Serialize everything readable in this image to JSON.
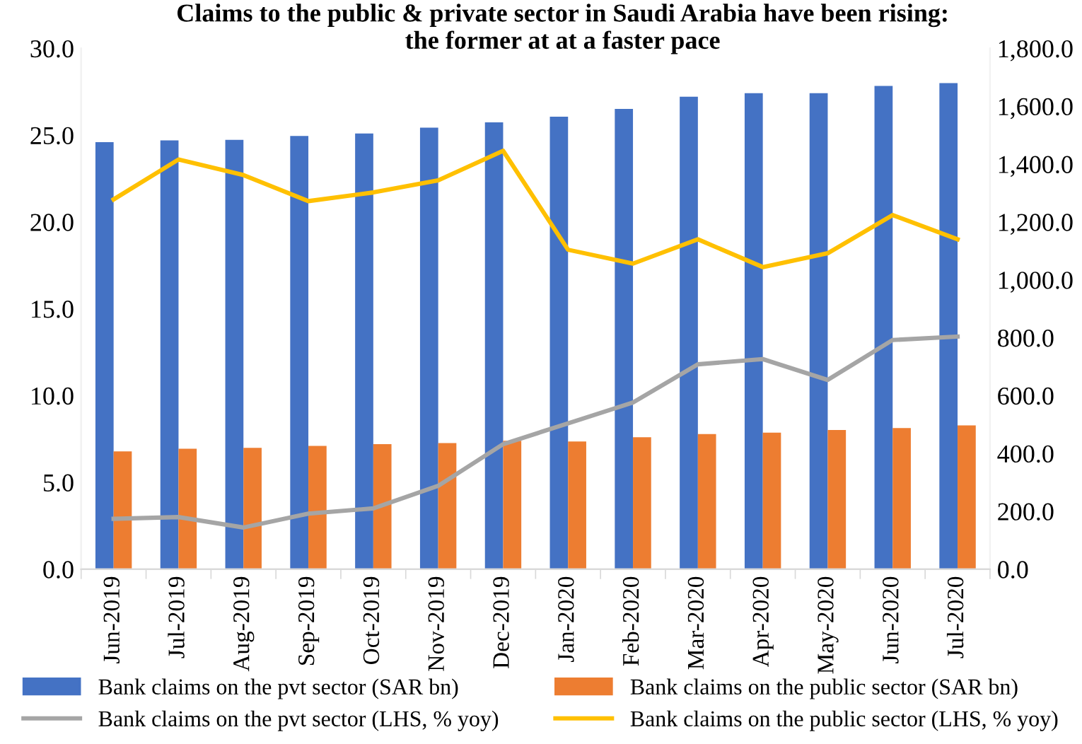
{
  "chart_data": {
    "type": "bar",
    "title": "Claims to the public & private sector in Saudi Arabia have been rising:\nthe former at at a faster pace",
    "categories": [
      "Jun-2019",
      "Jul-2019",
      "Aug-2019",
      "Sep-2019",
      "Oct-2019",
      "Nov-2019",
      "Dec-2019",
      "Jan-2020",
      "Feb-2020",
      "Mar-2020",
      "Apr-2020",
      "May-2020",
      "Jun-2020",
      "Jul-2020"
    ],
    "series": [
      {
        "name": "Bank claims on the pvt sector (SAR bn)",
        "axis": "y2",
        "color": "#4472c4",
        "values": [
          1476,
          1482,
          1484,
          1497,
          1506,
          1526,
          1544,
          1564,
          1591,
          1633,
          1645,
          1645,
          1670,
          1680
        ]
      },
      {
        "name": "Bank claims on the public sector (SAR bn)",
        "axis": "y2",
        "color": "#ed7d31",
        "values": [
          407,
          416,
          419,
          426,
          432,
          436,
          444,
          441,
          456,
          467,
          472,
          481,
          488,
          497
        ]
      },
      {
        "name": "Bank claims on the pvt sector (LHS, % yoy)",
        "type": "line",
        "axis": "y",
        "color": "#a5a5a5",
        "values": [
          2.9,
          3.0,
          2.4,
          3.2,
          3.5,
          4.8,
          7.2,
          8.4,
          9.6,
          11.8,
          12.1,
          10.9,
          13.2,
          13.4
        ]
      },
      {
        "name": "Bank claims on the public sector (LHS, % yoy)",
        "type": "line",
        "axis": "y",
        "color": "#ffc000",
        "values": [
          21.3,
          23.6,
          22.7,
          21.2,
          21.7,
          22.4,
          24.1,
          18.4,
          17.6,
          19.0,
          17.4,
          18.2,
          20.4,
          19.0
        ]
      }
    ],
    "ylim": [
      0,
      30
    ],
    "yticks": [
      {
        "value": 0,
        "label": "0.0"
      },
      {
        "value": 5,
        "label": "5.0"
      },
      {
        "value": 10,
        "label": "10.0"
      },
      {
        "value": 15,
        "label": "15.0"
      },
      {
        "value": 20,
        "label": "20.0"
      },
      {
        "value": 25,
        "label": "25.0"
      },
      {
        "value": 30,
        "label": "30.0"
      }
    ],
    "y2lim": [
      0,
      1800
    ],
    "y2ticks": [
      {
        "value": 0,
        "label": "0.0"
      },
      {
        "value": 200,
        "label": "200.0"
      },
      {
        "value": 400,
        "label": "400.0"
      },
      {
        "value": 600,
        "label": "600.0"
      },
      {
        "value": 800,
        "label": "800.0"
      },
      {
        "value": 1000,
        "label": "1,000.0"
      },
      {
        "value": 1200,
        "label": "1,200.0"
      },
      {
        "value": 1400,
        "label": "1,400.0"
      },
      {
        "value": 1600,
        "label": "1,600.0"
      },
      {
        "value": 1800,
        "label": "1,800.0"
      }
    ],
    "grid": false,
    "legend": "bottom",
    "marker": "none",
    "line_style": "solid"
  }
}
